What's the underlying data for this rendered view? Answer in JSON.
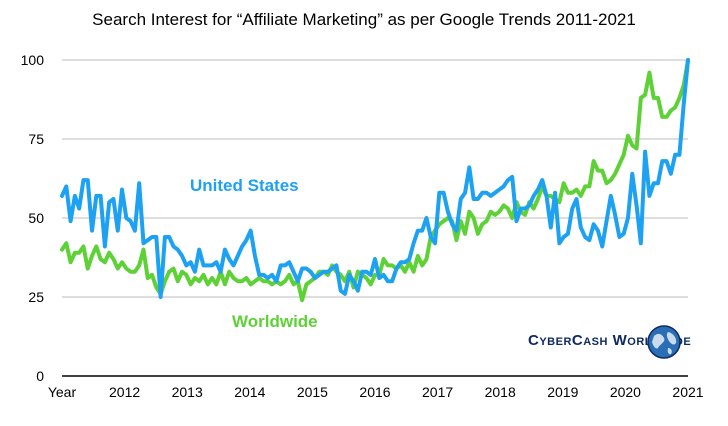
{
  "chart_data": {
    "type": "line",
    "title": "Search Interest for “Affiliate Marketing” as per Google Trends 2011-2021",
    "xlabel": "",
    "ylabel": "",
    "x_tick_labels": [
      "Year",
      "2012",
      "2013",
      "2014",
      "2015",
      "2016",
      "2017",
      "2018",
      "2019",
      "2020",
      "2021"
    ],
    "x_range": [
      2011,
      2021
    ],
    "ylim": [
      0,
      100
    ],
    "y_ticks": [
      0,
      25,
      50,
      75,
      100
    ],
    "y_tick_labels": [
      "0",
      "25",
      "50",
      "75",
      "100"
    ],
    "grid": "horizontal",
    "legend": "inline labels",
    "series": [
      {
        "name": "United States",
        "color": "#1da1f2",
        "values": [
          57,
          60,
          49,
          57,
          53,
          62,
          62,
          46,
          57,
          57,
          41,
          55,
          56,
          46,
          59,
          50,
          49,
          46,
          61,
          42,
          43,
          44,
          44,
          25,
          44,
          44,
          41,
          40,
          38,
          35,
          36,
          33,
          40,
          35,
          35,
          35,
          36,
          33,
          40,
          37,
          35,
          38,
          41,
          43,
          46,
          38,
          32,
          32,
          31,
          32,
          30,
          35,
          35,
          36,
          33,
          30,
          34,
          34,
          33,
          31,
          32,
          33,
          33,
          34,
          35,
          27,
          26,
          32,
          30,
          27,
          33,
          33,
          32,
          37,
          31,
          32,
          30,
          30,
          34,
          36,
          36,
          37,
          42,
          46,
          46,
          50,
          44,
          42,
          58,
          58,
          52,
          48,
          46,
          56,
          58,
          66,
          56,
          56,
          58,
          58,
          57,
          58,
          59,
          60,
          62,
          63,
          49,
          53,
          53,
          54,
          57,
          59,
          62,
          57,
          47,
          58,
          42,
          44,
          45,
          53,
          56,
          47,
          44,
          43,
          48,
          46,
          41,
          49,
          57,
          51,
          44,
          45,
          50,
          64,
          54,
          42,
          71,
          57,
          61,
          61,
          68,
          68,
          64,
          70,
          70,
          86,
          100
        ]
      },
      {
        "name": "Worldwide",
        "color": "#5ed136",
        "values": [
          40,
          42,
          36,
          39,
          39,
          41,
          34,
          38,
          41,
          37,
          36,
          39,
          37,
          34,
          36,
          34,
          33,
          33,
          35,
          40,
          31,
          32,
          28,
          26,
          30,
          33,
          34,
          30,
          33,
          32,
          29,
          31,
          30,
          32,
          29,
          31,
          29,
          33,
          29,
          33,
          31,
          30,
          30,
          31,
          29,
          30,
          31,
          30,
          30,
          29,
          30,
          29,
          30,
          32,
          29,
          30,
          24,
          29,
          30,
          31,
          33,
          33,
          32,
          35,
          33,
          32,
          30,
          33,
          28,
          33,
          32,
          31,
          29,
          32,
          32,
          37,
          35,
          35,
          34,
          35,
          33,
          36,
          33,
          38,
          35,
          37,
          44,
          46,
          48,
          49,
          50,
          49,
          43,
          49,
          45,
          52,
          50,
          45,
          48,
          49,
          52,
          51,
          52,
          54,
          53,
          50,
          55,
          52,
          51,
          55,
          53,
          56,
          60,
          57,
          57,
          56,
          55,
          61,
          58,
          58,
          59,
          57,
          60,
          60,
          68,
          65,
          65,
          61,
          62,
          64,
          67,
          70,
          76,
          73,
          72,
          88,
          89,
          96,
          88,
          88,
          82,
          82,
          84,
          85,
          88,
          92,
          100
        ]
      }
    ],
    "annotations": [
      "United States",
      "Worldwide"
    ]
  },
  "branding": {
    "logo_text": "CyberCash Worldwide"
  }
}
